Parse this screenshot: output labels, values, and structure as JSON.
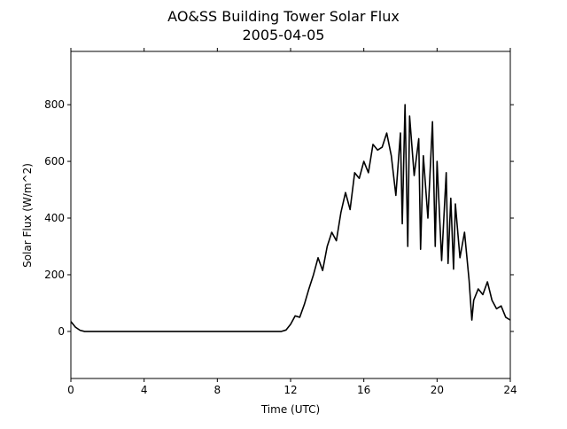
{
  "chart_data": {
    "type": "line",
    "title": "AO&SS Building Tower Solar Flux",
    "subtitle": "2005-04-05",
    "xlabel": "Time (UTC)",
    "ylabel": "Solar Flux (W/m^2)",
    "xlim": [
      0,
      24
    ],
    "xticks": [
      0,
      4,
      8,
      12,
      16,
      20,
      24
    ],
    "ylim": [
      -166,
      988
    ],
    "yticks": [
      0,
      200,
      400,
      600,
      800
    ],
    "x": [
      0,
      0.25,
      0.5,
      0.75,
      11.5,
      11.75,
      12,
      12.25,
      12.5,
      12.75,
      13,
      13.25,
      13.5,
      13.75,
      14,
      14.25,
      14.5,
      14.75,
      15,
      15.25,
      15.5,
      15.75,
      16,
      16.25,
      16.5,
      16.75,
      17,
      17.25,
      17.5,
      17.75,
      18,
      18.1,
      18.25,
      18.4,
      18.5,
      18.75,
      19,
      19.1,
      19.25,
      19.5,
      19.75,
      19.9,
      20,
      20.25,
      20.5,
      20.6,
      20.75,
      20.9,
      21,
      21.25,
      21.5,
      21.75,
      21.9,
      22,
      22.25,
      22.5,
      22.75,
      23,
      23.25,
      23.5,
      23.75,
      24
    ],
    "series": [
      {
        "name": "Solar Flux",
        "color": "#000000",
        "values": [
          35,
          15,
          4,
          0,
          0,
          5,
          25,
          55,
          50,
          95,
          150,
          200,
          260,
          215,
          300,
          350,
          320,
          420,
          490,
          430,
          560,
          540,
          600,
          560,
          660,
          640,
          650,
          700,
          620,
          480,
          700,
          380,
          800,
          300,
          760,
          550,
          680,
          290,
          620,
          400,
          740,
          300,
          600,
          250,
          560,
          240,
          470,
          220,
          450,
          260,
          350,
          180,
          40,
          110,
          150,
          130,
          175,
          110,
          80,
          90,
          50,
          40
        ]
      }
    ]
  }
}
